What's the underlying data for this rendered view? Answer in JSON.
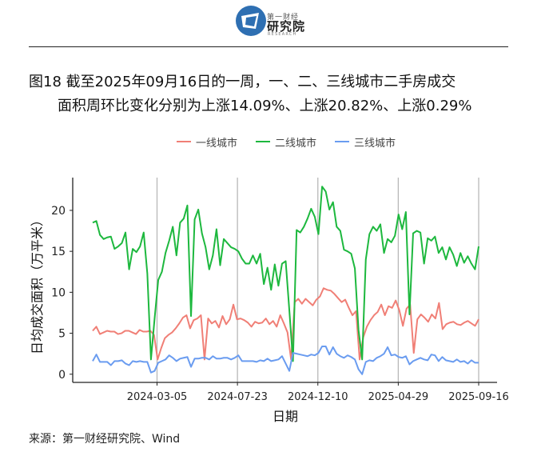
{
  "header": {
    "logo_small": "第一财经",
    "logo_main": "研究院",
    "logo_en": "RESEARCH"
  },
  "title": {
    "line1": "图18  截至2025年09月16日的一周，一、二、三线城市二手房成交",
    "line2": "面积周环比变化分别为上涨14.09%、上涨20.82%、上涨0.29%"
  },
  "source": "来源：第一财经研究院、Wind",
  "colors": {
    "tier1": "#F07F76",
    "tier2": "#1DB83E",
    "tier3": "#6A9CF0",
    "logo": "#2E6FB2"
  },
  "chart_data": {
    "type": "line",
    "xlabel": "日期",
    "ylabel": "日均成交面积（万平米）",
    "ylim": [
      -1,
      24
    ],
    "y_ticks": [
      0,
      5,
      10,
      15,
      20
    ],
    "x_ticks": [
      "2024-03-05",
      "2024-07-23",
      "2024-12-10",
      "2025-04-29",
      "2025-09-16"
    ],
    "grid": "vertical lines at x ticks",
    "legend_position": "top",
    "x_start": "2023-11-14",
    "x_end": "2025-09-16",
    "series": [
      {
        "name": "一线城市",
        "color_key": "tier1",
        "values": [
          5.3,
          5.8,
          4.9,
          5.1,
          5.3,
          5.2,
          5.2,
          4.9,
          5.0,
          5.3,
          5.3,
          5.1,
          4.9,
          5.4,
          5.2,
          5.2,
          5.3,
          4.8,
          1.8,
          3.2,
          4.4,
          4.8,
          5.1,
          5.6,
          6.2,
          6.9,
          7.2,
          5.6,
          6.6,
          6.8,
          7.2,
          1.8,
          6.8,
          6.2,
          6.5,
          5.7,
          7.1,
          6.1,
          6.7,
          8.5,
          6.7,
          6.8,
          6.6,
          6.3,
          5.8,
          6.4,
          6.2,
          6.3,
          6.8,
          6.1,
          6.5,
          5.8,
          7.2,
          6.2,
          5.1,
          1.8,
          8.8,
          9.2,
          8.6,
          9.2,
          8.8,
          8.4,
          9.1,
          9.5,
          10.5,
          10.3,
          10.2,
          9.8,
          9.3,
          8.8,
          9.1,
          8.1,
          7.2,
          7.7,
          1.8,
          4.5,
          5.8,
          6.6,
          7.2,
          7.6,
          8.5,
          7.2,
          8.3,
          8.1,
          9.0,
          7.8,
          5.9,
          8.0,
          8.5,
          2.6,
          6.7,
          7.3,
          6.9,
          6.4,
          7.3,
          6.8,
          8.7,
          5.5,
          6.1,
          6.3,
          6.4,
          6.1,
          6.0,
          6.3,
          6.5,
          6.2,
          5.9,
          6.7
        ]
      },
      {
        "name": "二线城市",
        "color_key": "tier2",
        "values": [
          18.5,
          18.7,
          17.0,
          16.5,
          16.7,
          16.8,
          15.3,
          15.6,
          16.0,
          17.3,
          12.8,
          15.3,
          14.9,
          15.6,
          17.3,
          12.3,
          1.8,
          6.8,
          11.5,
          12.5,
          14.8,
          16.3,
          18.0,
          14.5,
          18.5,
          19.0,
          20.6,
          7.1,
          18.9,
          20.1,
          17.2,
          15.5,
          12.8,
          14.5,
          17.7,
          13.3,
          16.5,
          16.0,
          15.5,
          15.3,
          15.0,
          14.1,
          13.5,
          13.5,
          14.5,
          13.5,
          14.7,
          11.0,
          13.0,
          10.3,
          13.4,
          10.8,
          13.5,
          13.8,
          7.8,
          1.6,
          17.6,
          17.3,
          18.0,
          19.0,
          20.2,
          19.2,
          17.1,
          22.9,
          22.3,
          20.1,
          21.0,
          18.0,
          17.5,
          15.2,
          15.0,
          14.7,
          12.9,
          5.4,
          1.8,
          14.0,
          17.1,
          18.0,
          17.5,
          18.3,
          14.8,
          16.5,
          16.1,
          16.9,
          19.5,
          17.7,
          19.8,
          7.3,
          17.2,
          17.5,
          17.3,
          13.5,
          16.6,
          16.3,
          16.8,
          14.8,
          15.5,
          14.0,
          15.5,
          14.6,
          13.2,
          14.8,
          13.6,
          14.4,
          13.5,
          12.8,
          15.6
        ]
      },
      {
        "name": "三线城市",
        "color_key": "tier3",
        "values": [
          1.6,
          2.4,
          1.5,
          1.5,
          1.5,
          1.1,
          1.6,
          1.6,
          1.7,
          1.3,
          1.1,
          1.6,
          1.5,
          1.6,
          1.5,
          1.5,
          0.2,
          0.4,
          1.4,
          1.6,
          1.8,
          2.3,
          2.0,
          1.6,
          1.9,
          2.0,
          2.1,
          0.9,
          1.9,
          1.9,
          2.0,
          2.0,
          1.8,
          2.2,
          1.9,
          1.9,
          2.0,
          2.0,
          1.8,
          2.0,
          2.3,
          1.6,
          1.6,
          1.6,
          1.6,
          1.5,
          1.7,
          1.6,
          1.9,
          1.6,
          1.7,
          1.8,
          2.2,
          1.3,
          0.4,
          2.6,
          2.5,
          2.4,
          2.3,
          2.2,
          2.4,
          2.3,
          2.6,
          3.4,
          3.4,
          2.4,
          3.3,
          2.5,
          2.2,
          2.0,
          2.3,
          2.1,
          1.8,
          0.6,
          0.0,
          1.5,
          1.7,
          1.6,
          2.0,
          2.2,
          2.5,
          3.3,
          2.3,
          2.4,
          2.1,
          2.0,
          2.2,
          1.2,
          1.6,
          1.8,
          2.0,
          1.8,
          1.7,
          2.4,
          2.3,
          1.6,
          2.1,
          1.7,
          1.6,
          1.5,
          1.8,
          1.5,
          1.6,
          1.3,
          1.7,
          1.4,
          1.4
        ]
      }
    ]
  }
}
